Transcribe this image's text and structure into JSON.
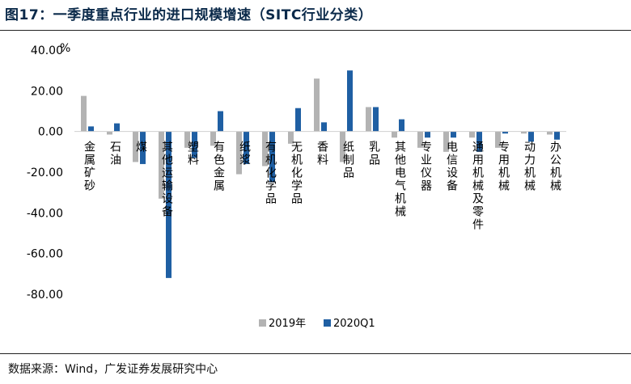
{
  "title": "图17：一季度重点行业的进口规模增速（SITC行业分类）",
  "source": "数据来源：Wind，广发证券发展研究中心",
  "chart_data": {
    "type": "bar",
    "title": "图17：一季度重点行业的进口规模增速（SITC行业分类）",
    "ylabel": "%",
    "xlabel": "",
    "ylim": [
      -80,
      40
    ],
    "yticks": [
      "40.00",
      "20.00",
      "0.00",
      "-20.00",
      "-40.00",
      "-60.00",
      "-80.00"
    ],
    "grid": false,
    "legend_position": "bottom-center",
    "categories": [
      "金属矿砂",
      "石油",
      "煤",
      "其他运输设备",
      "塑料",
      "有色金属",
      "纸浆",
      "有机化学品",
      "无机化学品",
      "香料",
      "纸制品",
      "乳品",
      "其他电气机械",
      "专业仪器",
      "电信设备",
      "通用机械及零件",
      "专用机械",
      "动力机械",
      "办公机械"
    ],
    "category_labels_visible": [
      "金属矿砂",
      "石油",
      "煤",
      "其他运输设备",
      "塑料",
      "有色金属",
      "纸浆",
      "有机化学品",
      "无机化学品",
      "香料",
      "纸制品",
      "乳品",
      "其他电气机械",
      "专业仪器",
      "电信设备",
      "通用机械及零件",
      "专用机械",
      "动力机械",
      "办公机械"
    ],
    "series": [
      {
        "name": "2019年",
        "color": "#b3b3b3",
        "values": [
          17.5,
          -1.5,
          -15,
          -33,
          -8,
          -7,
          -21,
          -17,
          -6,
          26,
          -15,
          12,
          -3,
          -8,
          -10,
          -3,
          -8,
          -1,
          -1.5
        ]
      },
      {
        "name": "2020Q1",
        "color": "#1f5fa3",
        "values": [
          2.5,
          4,
          -16,
          -72,
          -13,
          10,
          -16,
          -25,
          11.5,
          4.5,
          30,
          12,
          6,
          -3,
          -3,
          -10,
          -1,
          -5,
          -4
        ]
      }
    ]
  }
}
